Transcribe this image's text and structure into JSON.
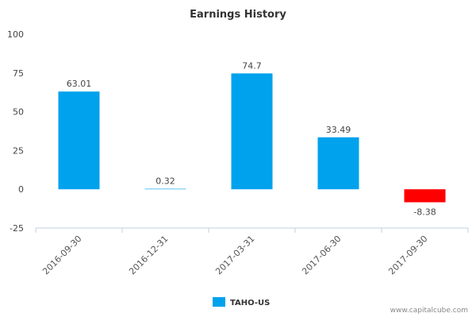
{
  "chart_data": {
    "type": "bar",
    "title": "Earnings History",
    "categories": [
      "2016-09-30",
      "2016-12-31",
      "2017-03-31",
      "2017-06-30",
      "2017-09-30"
    ],
    "series": [
      {
        "name": "TAHO-US",
        "values": [
          63.01,
          0.32,
          74.7,
          33.49,
          -8.38
        ]
      }
    ],
    "data_labels": [
      "63.01",
      "0.32",
      "74.7",
      "33.49",
      "-8.38"
    ],
    "y_ticks": [
      "100",
      "75",
      "50",
      "25",
      "0",
      "-25"
    ],
    "ylim": [
      -25,
      100
    ],
    "xlabel": "",
    "ylabel": "",
    "grid": false,
    "legend_position": "bottom-center",
    "colors": {
      "positive": "#00a2ed",
      "negative": "#ff0000",
      "axis": "#c0d0e0"
    }
  },
  "footer": {
    "credit": "www.capitalcube.com"
  }
}
